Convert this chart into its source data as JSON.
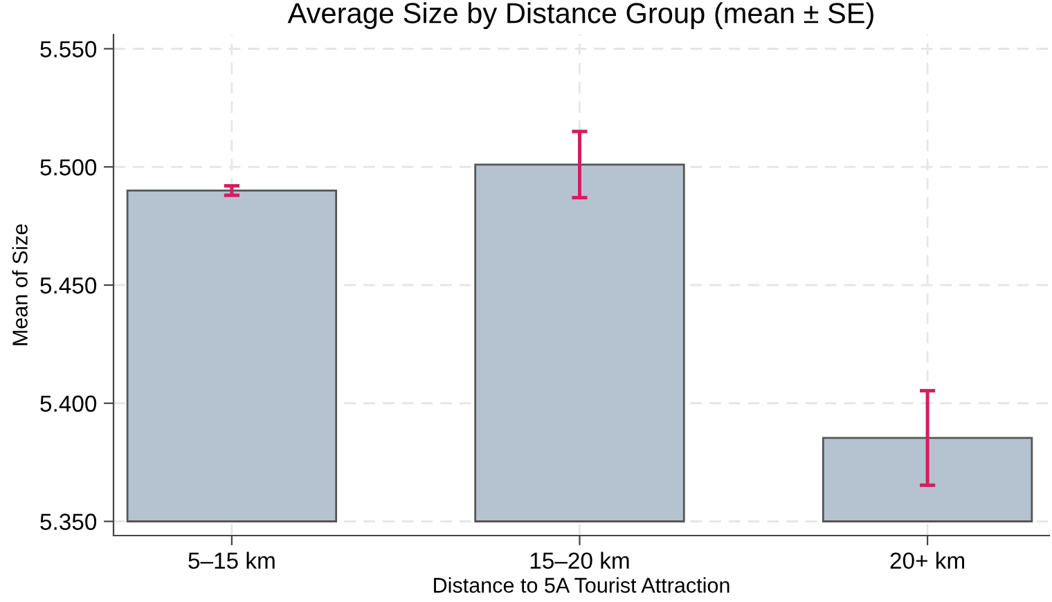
{
  "chart_data": {
    "type": "bar",
    "title": "Average Size by Distance Group (mean ± SE)",
    "xlabel": "Distance to 5A Tourist Attraction",
    "ylabel": "Mean of Size",
    "categories": [
      "5–15 km",
      "15–20 km",
      "20+ km"
    ],
    "base": [
      5.35,
      5.35,
      5.35
    ],
    "values": [
      0.14,
      0.151,
      0.0353
    ],
    "errors": [
      0.002,
      0.014,
      0.02
    ],
    "color": "#b5c3d1",
    "ylim": [
      5.344,
      5.556
    ],
    "yticks": [
      {
        "value": 5.35,
        "label": "5.350"
      },
      {
        "value": 5.4,
        "label": "5.400"
      },
      {
        "value": 5.45,
        "label": "5.450"
      },
      {
        "value": 5.5,
        "label": "5.500"
      },
      {
        "value": 5.55,
        "label": "5.550"
      }
    ],
    "grid": true
  }
}
